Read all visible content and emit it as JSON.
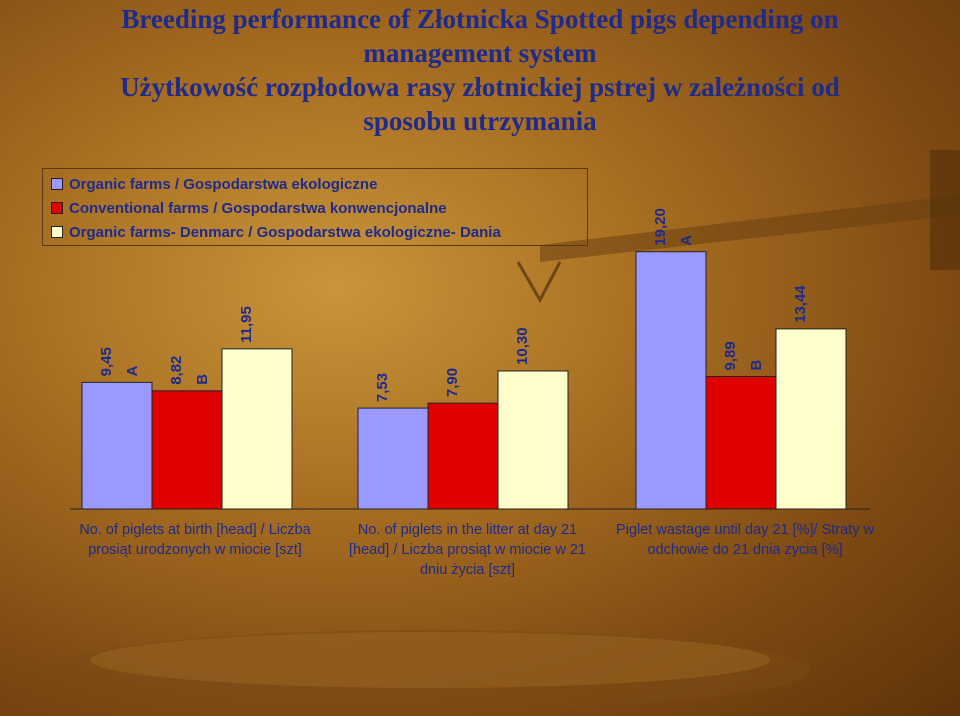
{
  "title_lines": [
    "Breeding performance of Złotnicka Spotted pigs depending on",
    "management system",
    "Użytkowość rozpłodowa rasy złotnickiej pstrej w zależności od",
    "sposobu utrzymania"
  ],
  "chart_data": {
    "type": "bar",
    "categories": [
      "No. of piglets at birth [head] / Liczba prosiąt urodzonych w miocie [szt]",
      "No. of piglets in the litter at day 21 [head] / Liczba prosiąt w miocie w 21 dniu życia [szt]",
      "Piglet wastage until day 21 [%]/ Straty w odchowie do 21 dnia zycia [%]"
    ],
    "category_lines": [
      [
        "No. of piglets at birth [head] / Liczba",
        "prosiąt urodzonych w miocie [szt]"
      ],
      [
        "No. of piglets in the litter at day 21",
        "[head] / Liczba prosiąt w miocie w 21",
        "dniu życia [szt]"
      ],
      [
        "Piglet wastage until day 21 [%]/ Straty w",
        "odchowie do 21 dnia zycia [%]"
      ]
    ],
    "series": [
      {
        "name": "Organic farms / Gospodarstwa ekologiczne",
        "color": "#9999ff",
        "values": [
          9.45,
          7.53,
          19.2
        ],
        "labels": [
          "9,45",
          "7,53",
          "19,20"
        ],
        "letters": [
          "A",
          "",
          "A"
        ]
      },
      {
        "name": "Conventional farms / Gospodarstwa konwencjonalne",
        "color": "#e00000",
        "values": [
          8.82,
          7.9,
          9.89
        ],
        "labels": [
          "8,82",
          "7,90",
          "9,89"
        ],
        "letters": [
          "B",
          "",
          "B"
        ]
      },
      {
        "name": "Organic farms- Denmarc / Gospodarstwa ekologiczne- Dania",
        "color": "#ffffcc",
        "values": [
          11.95,
          10.3,
          13.44
        ],
        "labels": [
          "11,95",
          "10,30",
          "13,44"
        ],
        "letters": [
          "",
          "",
          ""
        ]
      }
    ],
    "legend_position": "top-left",
    "grid": false
  }
}
